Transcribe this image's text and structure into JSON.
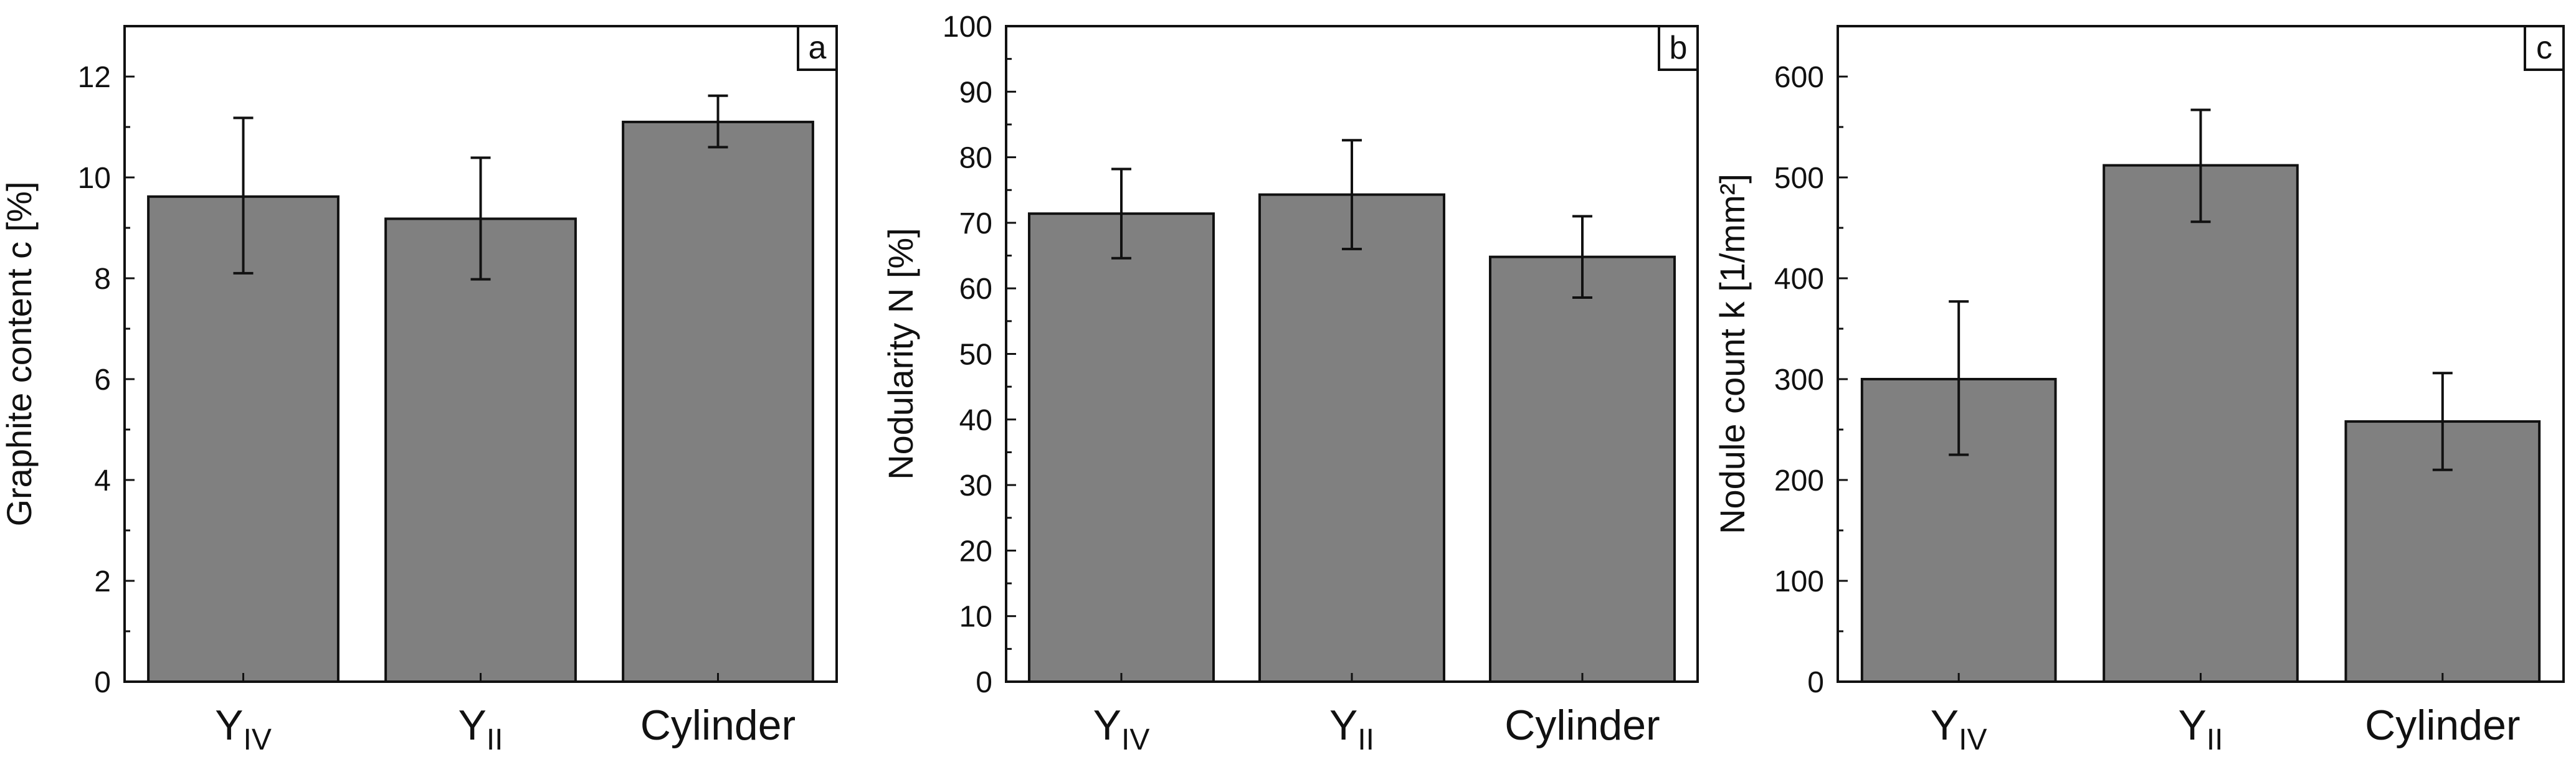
{
  "colors": {
    "bar_fill": "#808080",
    "bar_stroke": "#111111",
    "axis": "#111111",
    "background": "#ffffff"
  },
  "chart_data": [
    {
      "type": "bar",
      "panel_label": "a",
      "categories": [
        {
          "main": "Y",
          "sub": "IV"
        },
        {
          "main": "Y",
          "sub": "II"
        },
        {
          "main": "Cylinder",
          "sub": ""
        }
      ],
      "values": [
        9.62,
        9.18,
        11.1
      ],
      "error_low": [
        8.1,
        7.98,
        10.6
      ],
      "error_high": [
        11.18,
        10.39,
        11.62
      ],
      "ylabel": "Graphite content c [%]",
      "ylim": [
        0,
        13
      ],
      "major_ticks": [
        0,
        2,
        4,
        6,
        8,
        10,
        12
      ],
      "minor_step": 1,
      "grid": false
    },
    {
      "type": "bar",
      "panel_label": "b",
      "categories": [
        {
          "main": "Y",
          "sub": "IV"
        },
        {
          "main": "Y",
          "sub": "II"
        },
        {
          "main": "Cylinder",
          "sub": ""
        }
      ],
      "values": [
        71.4,
        74.3,
        64.8
      ],
      "error_low": [
        64.6,
        66.0,
        58.6
      ],
      "error_high": [
        78.2,
        82.6,
        71.0
      ],
      "ylabel": "Nodularity N [%]",
      "ylim": [
        0,
        100
      ],
      "major_ticks": [
        0,
        10,
        20,
        30,
        40,
        50,
        60,
        70,
        80,
        90,
        100
      ],
      "minor_step": 5,
      "grid": false
    },
    {
      "type": "bar",
      "panel_label": "c",
      "categories": [
        {
          "main": "Y",
          "sub": "IV"
        },
        {
          "main": "Y",
          "sub": "II"
        },
        {
          "main": "Cylinder",
          "sub": ""
        }
      ],
      "values": [
        300,
        512,
        258
      ],
      "error_low": [
        225,
        456,
        210
      ],
      "error_high": [
        377,
        567,
        306
      ],
      "ylabel": "Nodule count k [1/mm²]",
      "ylim": [
        0,
        650
      ],
      "major_ticks": [
        0,
        100,
        200,
        300,
        400,
        500,
        600
      ],
      "minor_step": 50,
      "grid": false
    }
  ]
}
